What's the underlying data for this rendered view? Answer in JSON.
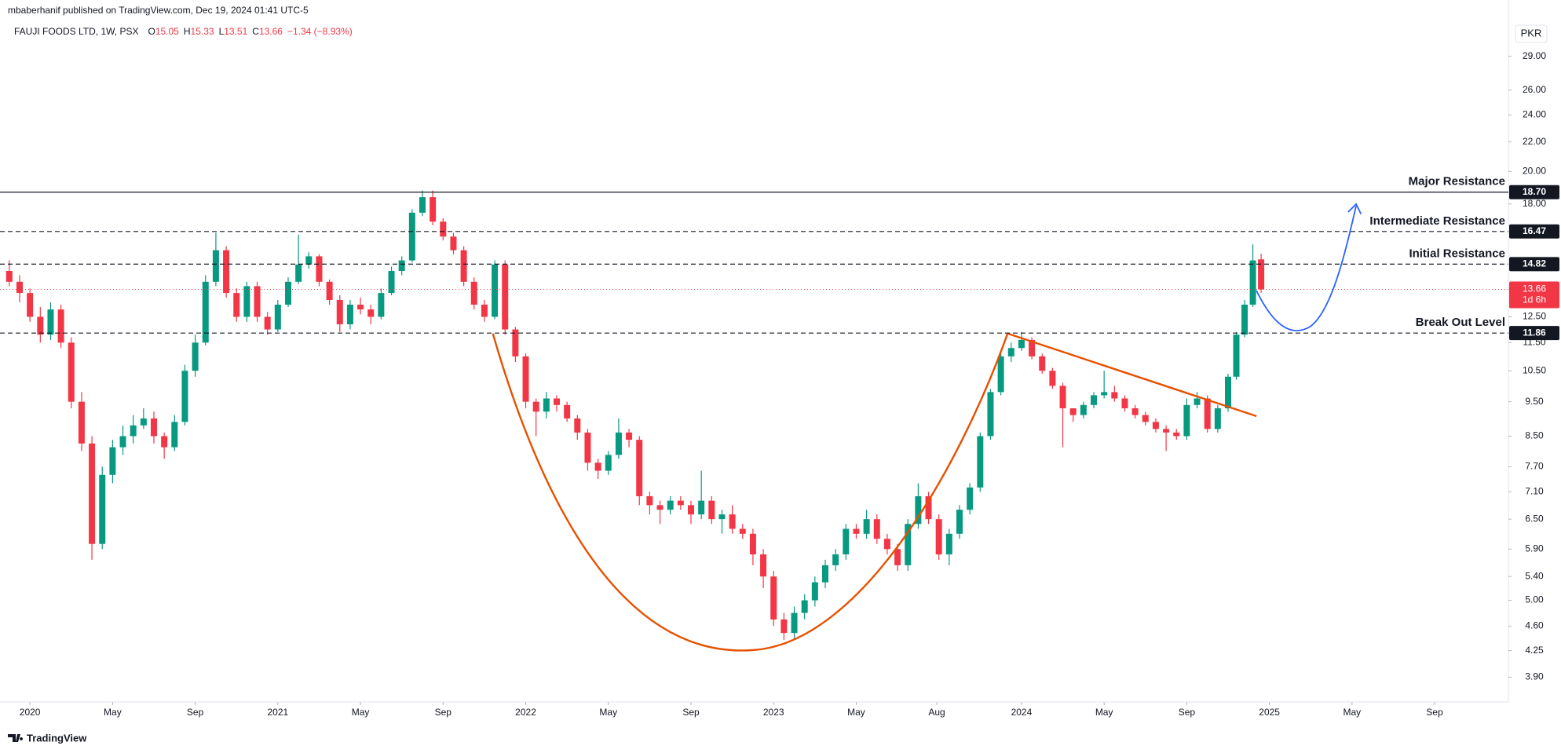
{
  "header": {
    "text": "mbaberhanif published on TradingView.com, Dec 19, 2024 01:41 UTC-5"
  },
  "legend": {
    "symbol": "FAUJI FOODS LTD, 1W, PSX",
    "items": [
      {
        "key": "O",
        "value": "15.05"
      },
      {
        "key": "H",
        "value": "15.33"
      },
      {
        "key": "L",
        "value": "13.51"
      },
      {
        "key": "C",
        "value": "13.66"
      }
    ],
    "change": "−1.34 (−8.93%)"
  },
  "currency": "PKR",
  "footer": {
    "text": "TradingView"
  },
  "chart_data": {
    "type": "candlestick",
    "log_scale": true,
    "up_color": "#089981",
    "down_color": "#f23645",
    "x": [
      -1,
      -0.5,
      0,
      0.5,
      1,
      1.5,
      2,
      2.5,
      3,
      3.5,
      4,
      4.5,
      5,
      5.5,
      6,
      6.5,
      7,
      7.5,
      8,
      8.5,
      9,
      9.5,
      10,
      10.5,
      11,
      11.5,
      12,
      12.5,
      13,
      13.5,
      14,
      14.5,
      15,
      15.5,
      16,
      16.5,
      17,
      17.5,
      18,
      18.5,
      19,
      19.5,
      20,
      20.5,
      21,
      21.5,
      22,
      22.5,
      23,
      23.5,
      24,
      24.5,
      25,
      25.5,
      26,
      26.5,
      27,
      27.5,
      28,
      28.5,
      29,
      29.5,
      30,
      30.5,
      31,
      31.5,
      32,
      32.5,
      33,
      33.5,
      34,
      34.5,
      35,
      35.5,
      36,
      36.5,
      37,
      37.5,
      38,
      38.5,
      39,
      39.5,
      40,
      40.5,
      41,
      41.5,
      42,
      42.5,
      43,
      43.5,
      44,
      44.5,
      45,
      45.5,
      46,
      46.5,
      47,
      47.5,
      48,
      48.5,
      49,
      49.5,
      50,
      50.5,
      51,
      51.5,
      52,
      52.5,
      53,
      53.5,
      54,
      54.5,
      55,
      55.5,
      56,
      56.5,
      57,
      57.5,
      58,
      58.4,
      58.8,
      59.2,
      59.6
    ],
    "open": [
      14.5,
      14.0,
      13.5,
      12.5,
      11.8,
      12.8,
      11.5,
      9.5,
      8.3,
      6.0,
      7.5,
      8.2,
      8.5,
      8.8,
      9.0,
      8.5,
      8.2,
      8.9,
      10.5,
      11.5,
      14.0,
      15.5,
      13.5,
      12.5,
      13.8,
      12.5,
      12.0,
      13.0,
      14.0,
      14.8,
      15.2,
      14.0,
      13.2,
      12.2,
      13.0,
      12.8,
      12.5,
      13.5,
      14.5,
      15.0,
      17.5,
      18.4,
      17.0,
      16.2,
      15.5,
      14.0,
      13.0,
      12.5,
      14.8,
      12.0,
      11.0,
      9.5,
      9.2,
      9.6,
      9.4,
      9.0,
      8.6,
      7.8,
      7.6,
      8.0,
      8.6,
      8.4,
      7.0,
      6.8,
      6.7,
      6.9,
      6.8,
      6.6,
      6.9,
      6.5,
      6.6,
      6.3,
      6.2,
      5.8,
      5.4,
      4.7,
      4.5,
      4.8,
      5.0,
      5.3,
      5.6,
      5.8,
      6.3,
      6.2,
      6.5,
      6.1,
      5.9,
      5.6,
      6.4,
      7.0,
      6.5,
      5.8,
      6.2,
      6.7,
      7.2,
      8.5,
      9.8,
      11.0,
      11.3,
      11.6,
      11.0,
      10.5,
      10.0,
      9.3,
      9.1,
      9.4,
      9.7,
      9.8,
      9.6,
      9.3,
      9.1,
      8.9,
      8.7,
      8.6,
      8.5,
      9.4,
      9.6,
      8.7,
      9.3,
      10.3,
      11.8,
      13.0,
      15.05
    ],
    "high": [
      15.0,
      14.3,
      13.7,
      12.9,
      13.1,
      13.0,
      11.7,
      9.8,
      8.5,
      7.7,
      8.4,
      8.8,
      9.1,
      9.3,
      9.2,
      8.6,
      9.1,
      10.7,
      11.8,
      14.3,
      16.4,
      15.7,
      13.7,
      14.0,
      14.0,
      12.7,
      13.2,
      14.2,
      16.3,
      15.4,
      15.3,
      14.1,
      13.4,
      13.2,
      13.3,
      13.0,
      13.7,
      14.7,
      15.2,
      17.7,
      18.8,
      18.8,
      17.2,
      16.4,
      15.7,
      14.2,
      13.2,
      15.0,
      15.0,
      12.1,
      11.1,
      9.6,
      9.8,
      9.7,
      9.5,
      9.1,
      8.7,
      7.9,
      8.1,
      9.0,
      8.7,
      8.5,
      7.1,
      6.9,
      7.0,
      7.0,
      6.9,
      7.6,
      7.0,
      6.7,
      6.8,
      6.4,
      6.3,
      5.9,
      5.5,
      4.8,
      4.9,
      5.1,
      5.4,
      5.7,
      5.9,
      6.4,
      6.4,
      6.7,
      6.6,
      6.2,
      6.0,
      6.5,
      7.3,
      7.1,
      6.6,
      6.3,
      6.8,
      7.3,
      8.6,
      9.9,
      11.1,
      11.5,
      11.9,
      11.7,
      11.1,
      10.6,
      10.1,
      9.3,
      9.5,
      9.8,
      10.5,
      10.0,
      9.7,
      9.4,
      9.2,
      9.0,
      8.8,
      8.7,
      9.6,
      9.8,
      9.7,
      9.4,
      10.4,
      11.9,
      13.2,
      15.8,
      15.33
    ],
    "low": [
      13.8,
      13.1,
      12.3,
      11.5,
      11.6,
      11.3,
      9.3,
      8.1,
      5.7,
      5.9,
      7.3,
      8.0,
      8.3,
      8.7,
      8.3,
      7.9,
      8.1,
      8.8,
      10.3,
      11.4,
      13.8,
      13.3,
      12.3,
      12.3,
      12.3,
      11.8,
      11.9,
      12.9,
      13.9,
      14.6,
      13.8,
      13.0,
      11.9,
      12.0,
      12.6,
      12.2,
      12.4,
      13.4,
      14.3,
      14.9,
      17.3,
      16.8,
      16.0,
      15.3,
      13.8,
      12.8,
      12.3,
      12.4,
      11.8,
      10.8,
      9.3,
      8.5,
      9.0,
      9.2,
      8.9,
      8.4,
      7.6,
      7.4,
      7.5,
      7.9,
      8.2,
      6.8,
      6.6,
      6.4,
      6.6,
      6.7,
      6.4,
      6.5,
      6.4,
      6.2,
      6.2,
      6.1,
      5.6,
      5.2,
      4.6,
      4.4,
      4.4,
      4.7,
      4.9,
      5.2,
      5.5,
      5.7,
      6.1,
      6.1,
      6.0,
      5.8,
      5.5,
      5.5,
      6.3,
      6.4,
      5.7,
      5.6,
      6.1,
      6.6,
      7.1,
      8.4,
      9.7,
      10.8,
      11.2,
      10.9,
      10.4,
      9.9,
      8.2,
      8.9,
      9.0,
      9.3,
      9.6,
      9.5,
      9.2,
      9.0,
      8.8,
      8.6,
      8.1,
      8.4,
      8.4,
      9.3,
      8.6,
      8.6,
      9.2,
      10.2,
      11.7,
      12.9,
      13.51
    ],
    "close": [
      14.0,
      13.5,
      12.5,
      11.8,
      12.8,
      11.5,
      9.5,
      8.3,
      6.0,
      7.5,
      8.2,
      8.5,
      8.8,
      9.0,
      8.5,
      8.2,
      8.9,
      10.5,
      11.5,
      14.0,
      15.5,
      13.5,
      12.5,
      13.8,
      12.5,
      12.0,
      13.0,
      14.0,
      14.8,
      15.2,
      14.0,
      13.2,
      12.2,
      13.0,
      12.8,
      12.5,
      13.5,
      14.5,
      15.0,
      17.5,
      18.4,
      17.0,
      16.2,
      15.5,
      14.0,
      13.0,
      12.5,
      14.8,
      12.0,
      11.0,
      9.5,
      9.2,
      9.6,
      9.4,
      9.0,
      8.6,
      7.8,
      7.6,
      8.0,
      8.6,
      8.4,
      7.0,
      6.8,
      6.7,
      6.9,
      6.8,
      6.6,
      6.9,
      6.5,
      6.6,
      6.3,
      6.2,
      5.8,
      5.4,
      4.7,
      4.5,
      4.8,
      5.0,
      5.3,
      5.6,
      5.8,
      6.3,
      6.2,
      6.5,
      6.1,
      5.9,
      5.6,
      6.4,
      7.0,
      6.5,
      5.8,
      6.2,
      6.7,
      7.2,
      8.5,
      9.8,
      11.0,
      11.3,
      11.6,
      11.0,
      10.5,
      10.0,
      9.3,
      9.1,
      9.4,
      9.7,
      9.8,
      9.6,
      9.3,
      9.1,
      8.9,
      8.7,
      8.6,
      8.5,
      9.4,
      9.6,
      8.7,
      9.3,
      10.3,
      11.8,
      13.0,
      15.0,
      13.66
    ],
    "xlim": [
      -1.45,
      71.57
    ],
    "xticks": [
      {
        "value": 0,
        "label": "2020"
      },
      {
        "value": 4,
        "label": "May"
      },
      {
        "value": 8,
        "label": "Sep"
      },
      {
        "value": 12,
        "label": "2021"
      },
      {
        "value": 16,
        "label": "May"
      },
      {
        "value": 20,
        "label": "Sep"
      },
      {
        "value": 24,
        "label": "2022"
      },
      {
        "value": 28,
        "label": "May"
      },
      {
        "value": 32,
        "label": "Sep"
      },
      {
        "value": 36,
        "label": "2023"
      },
      {
        "value": 40,
        "label": "May"
      },
      {
        "value": 43.9,
        "label": "Aug"
      },
      {
        "value": 48,
        "label": "2024"
      },
      {
        "value": 52,
        "label": "May"
      },
      {
        "value": 56,
        "label": "Sep"
      },
      {
        "value": 60,
        "label": "2025"
      },
      {
        "value": 64,
        "label": "May"
      },
      {
        "value": 68,
        "label": "Sep"
      }
    ],
    "ylim": [
      3.6,
      34.8
    ],
    "yticks": [
      {
        "value": 29,
        "label": "29.00"
      },
      {
        "value": 26,
        "label": "26.00"
      },
      {
        "value": 24,
        "label": "24.00"
      },
      {
        "value": 22,
        "label": "22.00"
      },
      {
        "value": 20,
        "label": "20.00"
      },
      {
        "value": 18,
        "label": "18.00"
      },
      {
        "value": 12.5,
        "label": "12.50"
      },
      {
        "value": 11.5,
        "label": "11.50"
      },
      {
        "value": 10.5,
        "label": "10.50"
      },
      {
        "value": 9.5,
        "label": "9.50"
      },
      {
        "value": 8.5,
        "label": "8.50"
      },
      {
        "value": 7.7,
        "label": "7.70"
      },
      {
        "value": 7.1,
        "label": "7.10"
      },
      {
        "value": 6.5,
        "label": "6.50"
      },
      {
        "value": 5.9,
        "label": "5.90"
      },
      {
        "value": 5.4,
        "label": "5.40"
      },
      {
        "value": 5,
        "label": "5.00"
      },
      {
        "value": 4.6,
        "label": "4.60"
      },
      {
        "value": 4.25,
        "label": "4.25"
      },
      {
        "value": 3.9,
        "label": "3.90"
      }
    ],
    "levels": [
      {
        "value": 18.7,
        "value_label": "18.70",
        "label": "Major Resistance",
        "style": "solid"
      },
      {
        "value": 16.47,
        "value_label": "16.47",
        "label": "Intermediate Resistance",
        "style": "dashed"
      },
      {
        "value": 14.82,
        "value_label": "14.82",
        "label": "Initial Resistance",
        "style": "dashed"
      },
      {
        "value": 11.86,
        "value_label": "11.86",
        "label": "Break Out Level",
        "style": "dashed"
      }
    ],
    "last_price": {
      "value": 13.66,
      "value_label": "13.66",
      "countdown": "1d 6h"
    }
  }
}
